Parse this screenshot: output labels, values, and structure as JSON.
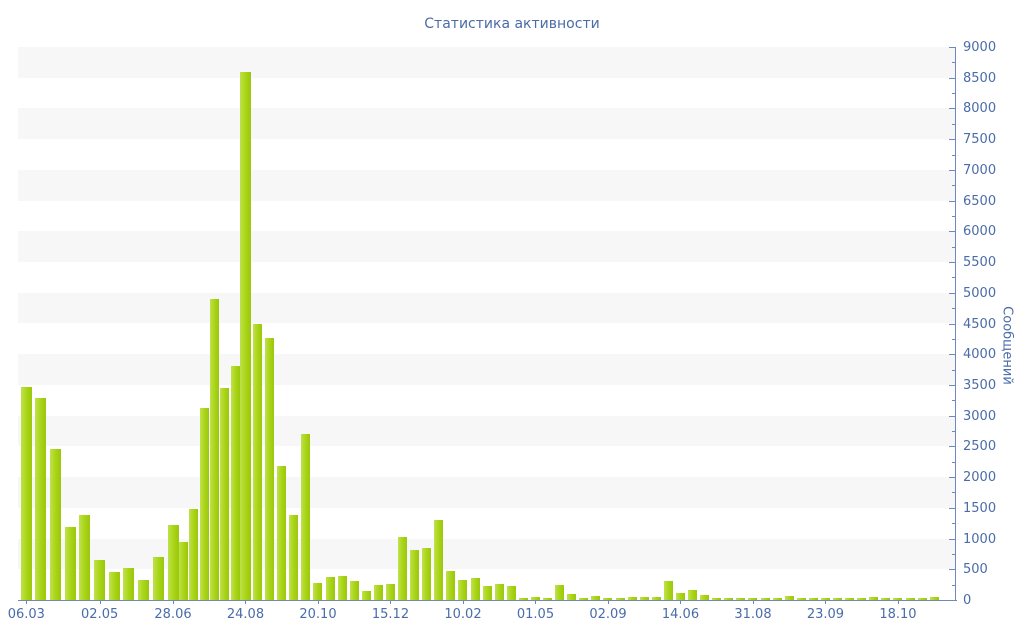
{
  "title": "Статистика активности",
  "chart_data": {
    "type": "bar",
    "title": "Статистика активности",
    "ylabel": "Сообщений",
    "xlabel": "",
    "ylim": [
      0,
      9000
    ],
    "y_major_step": 500,
    "y_minor_step": 250,
    "grid": "alternating-horizontal-stripes-every-500",
    "legend": "none",
    "y_axis_side": "right",
    "x_tick_labels": [
      "06.03",
      "02.05",
      "28.06",
      "24.08",
      "20.10",
      "15.12",
      "10.02",
      "01.05",
      "02.09",
      "14.06",
      "31.08",
      "23.09",
      "18.10"
    ],
    "x_tick_bar_indices": [
      0,
      5,
      10,
      17,
      23,
      29,
      35,
      41,
      47,
      53,
      59,
      65,
      71
    ],
    "values": [
      3470,
      3290,
      2460,
      1180,
      1390,
      650,
      455,
      515,
      325,
      695,
      1220,
      950,
      1480,
      3130,
      4900,
      3450,
      3810,
      8600,
      4500,
      4260,
      2180,
      1390,
      2700,
      280,
      380,
      390,
      310,
      150,
      250,
      265,
      1030,
      810,
      840,
      1310,
      480,
      325,
      355,
      230,
      255,
      235,
      40,
      45,
      30,
      250,
      90,
      40,
      60,
      40,
      40,
      45,
      45,
      50,
      305,
      120,
      165,
      80,
      30,
      30,
      30,
      30,
      35,
      30,
      60,
      30,
      30,
      30,
      40,
      30,
      30,
      45,
      30,
      40,
      40,
      30,
      45
    ],
    "colors": {
      "bar": "#a8d414",
      "bar_highlight": "#bfe14e",
      "bar_shadow": "#9ac60e",
      "axis": "#6e8abc",
      "text": "#4a6ca8",
      "stripe": "#f7f7f8",
      "background": "#ffffff"
    }
  }
}
